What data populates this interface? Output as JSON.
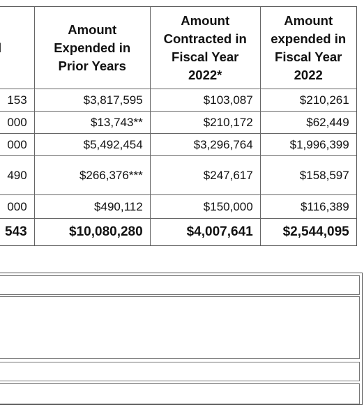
{
  "table": {
    "headers": [
      "l",
      "Amount Expended in Prior Years",
      "Amount Contracted in Fiscal Year 2022*",
      "Amount expended in Fiscal Year 2022"
    ],
    "rows": [
      [
        "153",
        "$3,817,595",
        "$103,087",
        "$210,261"
      ],
      [
        "000",
        "$13,743**",
        "$210,172",
        "$62,449"
      ],
      [
        "000",
        "$5,492,454",
        "$3,296,764",
        "$1,996,399"
      ],
      [
        "490",
        "$266,376***",
        "$247,617",
        "$158,597"
      ],
      [
        "000",
        "$490,112",
        "$150,000",
        "$116,389"
      ]
    ],
    "total": [
      "543",
      "$10,080,280",
      "$4,007,641",
      "$2,544,095"
    ]
  }
}
